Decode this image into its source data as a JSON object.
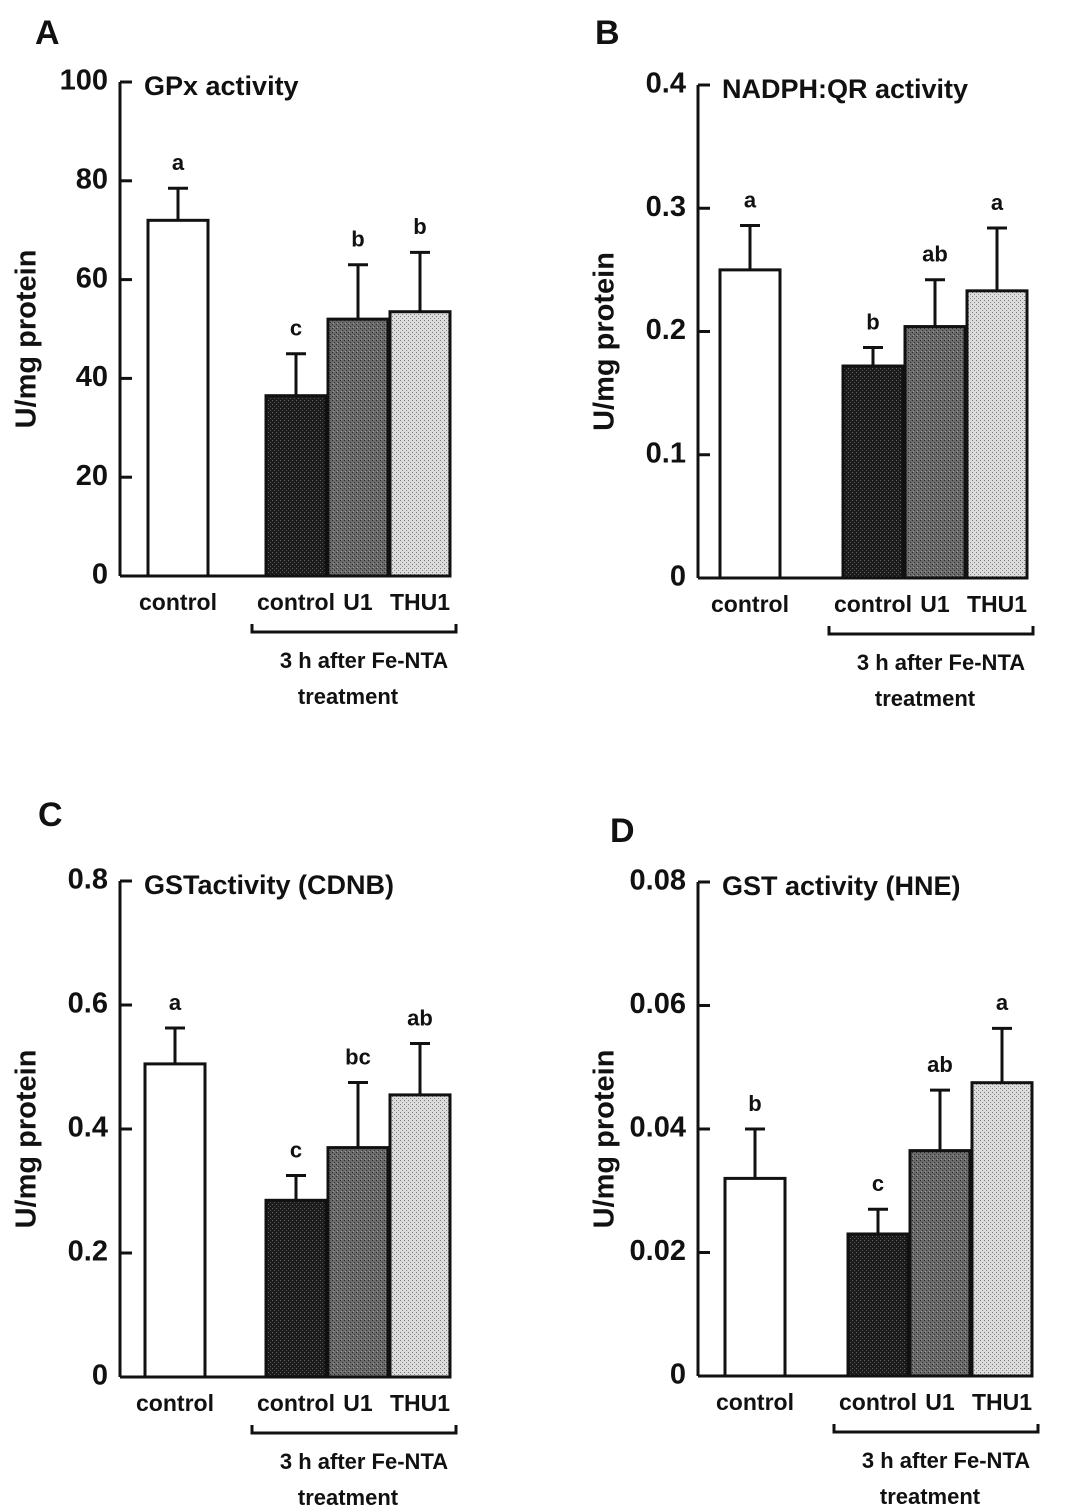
{
  "chart_data": [
    {
      "panel": "A",
      "type": "bar",
      "title": "GPx activity",
      "ylabel": "U/mg protein",
      "ylim": [
        0,
        100
      ],
      "yticks": [
        0,
        20,
        40,
        60,
        80,
        100
      ],
      "ytick_labels": [
        "0",
        "20",
        "40",
        "60",
        "80",
        "100"
      ],
      "categories": [
        "control",
        "control",
        "U1",
        "THU1"
      ],
      "group_label": [
        "3 h after Fe-NTA",
        "treatment"
      ],
      "values": [
        72,
        36.5,
        52,
        53.5
      ],
      "errors": [
        6.5,
        8.5,
        11,
        12
      ],
      "significance": [
        "a",
        "c",
        "b",
        "b"
      ],
      "fills": [
        "white",
        "dark",
        "medium",
        "light"
      ]
    },
    {
      "panel": "B",
      "type": "bar",
      "title": "NADPH:QR activity",
      "ylabel": "U/mg protein",
      "ylim": [
        0,
        0.4
      ],
      "yticks": [
        0,
        0.1,
        0.2,
        0.3,
        0.4
      ],
      "ytick_labels": [
        "0",
        "0.1",
        "0.2",
        "0.3",
        "0.4"
      ],
      "categories": [
        "control",
        "control",
        "U1",
        "THU1"
      ],
      "group_label": [
        "3 h after Fe-NTA",
        "treatment"
      ],
      "values": [
        0.25,
        0.172,
        0.204,
        0.233
      ],
      "errors": [
        0.036,
        0.015,
        0.038,
        0.051
      ],
      "significance": [
        "a",
        "b",
        "ab",
        "a"
      ],
      "fills": [
        "white",
        "dark",
        "medium",
        "light"
      ]
    },
    {
      "panel": "C",
      "type": "bar",
      "title": "GSTactivity (CDNB)",
      "ylabel": "U/mg protein",
      "ylim": [
        0,
        0.8
      ],
      "yticks": [
        0,
        0.2,
        0.4,
        0.6,
        0.8
      ],
      "ytick_labels": [
        "0",
        "0.2",
        "0.4",
        "0.6",
        "0.8"
      ],
      "categories": [
        "control",
        "control",
        "U1",
        "THU1"
      ],
      "group_label": [
        "3 h after Fe-NTA",
        "treatment"
      ],
      "values": [
        0.505,
        0.285,
        0.37,
        0.455
      ],
      "errors": [
        0.058,
        0.04,
        0.105,
        0.083
      ],
      "significance": [
        "a",
        "c",
        "bc",
        "ab"
      ],
      "fills": [
        "white",
        "dark",
        "medium",
        "light"
      ]
    },
    {
      "panel": "D",
      "type": "bar",
      "title": "GST activity (HNE)",
      "ylabel": "U/mg protein",
      "ylim": [
        0,
        0.08
      ],
      "yticks": [
        0,
        0.02,
        0.04,
        0.06,
        0.08
      ],
      "ytick_labels": [
        "0",
        "0.02",
        "0.04",
        "0.06",
        "0.08"
      ],
      "categories": [
        "control",
        "control",
        "U1",
        "THU1"
      ],
      "group_label": [
        "3 h after Fe-NTA",
        "treatment"
      ],
      "values": [
        0.032,
        0.023,
        0.0365,
        0.0475
      ],
      "errors": [
        0.008,
        0.004,
        0.0098,
        0.0088
      ],
      "significance": [
        "b",
        "c",
        "ab",
        "a"
      ],
      "fills": [
        "white",
        "dark",
        "medium",
        "light"
      ]
    }
  ]
}
